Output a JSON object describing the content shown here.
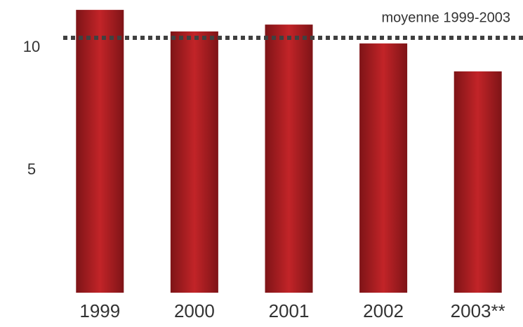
{
  "chart_data": {
    "type": "bar",
    "categories": [
      "1999",
      "2000",
      "2001",
      "2002",
      "2003**"
    ],
    "values": [
      11.54,
      10.66,
      10.94,
      10.17,
      9.03
    ],
    "color": "#b01e22",
    "ylim": [
      0,
      11.8
    ],
    "yticks": [
      5,
      10
    ],
    "grid": false,
    "reference_line": {
      "value": 10.4,
      "label": "moyenne 1999-2003",
      "color": "#404040"
    }
  }
}
